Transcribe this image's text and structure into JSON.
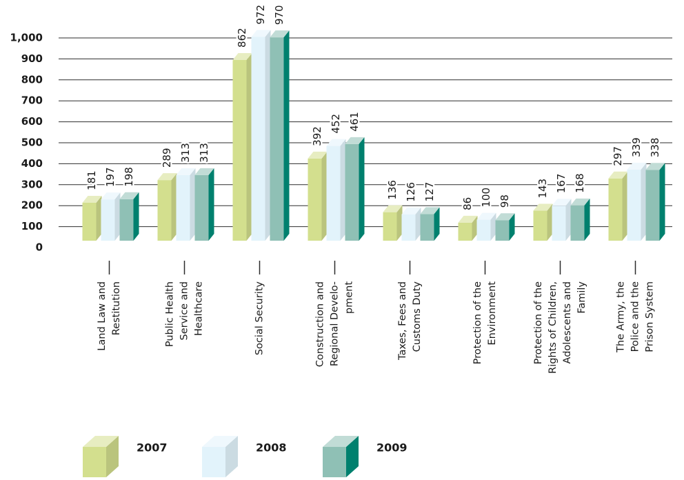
{
  "chart_data": {
    "type": "bar3d",
    "categories": [
      [
        "Land Law and",
        "Restitution"
      ],
      [
        "Public Health",
        "Service and",
        "Healthcare"
      ],
      [
        "Social Security"
      ],
      [
        "Construction and",
        "Regional Develo-",
        "pment"
      ],
      [
        "Taxes, Fees and",
        "Customs Duty"
      ],
      [
        "Protection of the",
        "Environment"
      ],
      [
        "Protection of the",
        "Rights of Children,",
        "Adolescents and",
        "Family"
      ],
      [
        "The Army, the",
        "Police and the",
        "Prison System"
      ]
    ],
    "series": [
      {
        "name": "2007",
        "color": "#d3df8e",
        "values": [
          181,
          289,
          862,
          392,
          136,
          86,
          143,
          297
        ]
      },
      {
        "name": "2008",
        "color": "#e2f3fb",
        "values": [
          197,
          313,
          972,
          452,
          126,
          100,
          167,
          339
        ]
      },
      {
        "name": "2009",
        "color": "#8fc0b5",
        "values": [
          198,
          313,
          970,
          461,
          127,
          98,
          168,
          338
        ]
      }
    ],
    "ylim": [
      0,
      1000
    ],
    "yticks": [
      0,
      100,
      200,
      300,
      400,
      500,
      600,
      700,
      800,
      900,
      {
        "value": 1000,
        "label": "1,000"
      }
    ],
    "grid": true,
    "legend": "bottom"
  }
}
